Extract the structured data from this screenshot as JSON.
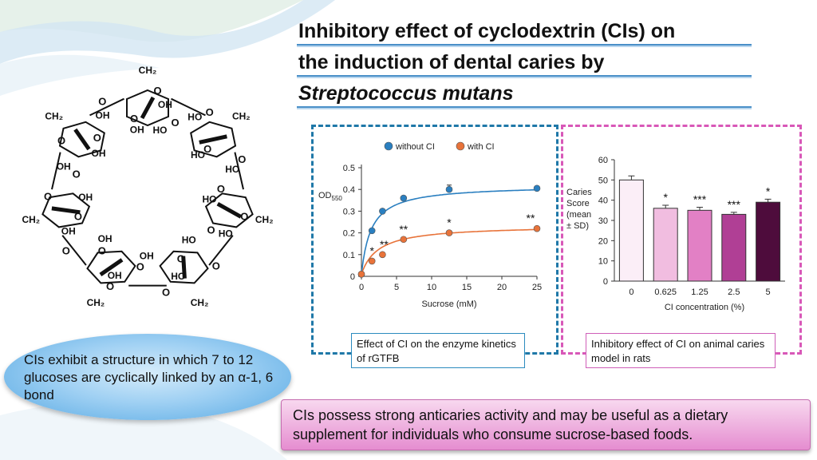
{
  "title": {
    "line1": "Inhibitory effect of cyclodextrin (CIs) on",
    "line2": "the induction of dental caries by",
    "line3": "Streptococcus mutans"
  },
  "colors": {
    "without_ci": "#2a7fc0",
    "with_ci": "#e8733a",
    "left_border": "#1f78a8",
    "right_border": "#d858b8"
  },
  "molecule": {
    "labels": [
      "CH₂",
      "CH₂",
      "CH₂",
      "CH₂",
      "CH₂",
      "CH₂",
      "CH₂",
      "O",
      "O",
      "O",
      "O",
      "O",
      "O",
      "O",
      "O",
      "O",
      "O",
      "O",
      "O",
      "O",
      "O",
      "O",
      "O",
      "O",
      "O",
      "O",
      "O",
      "O",
      "O",
      "HO",
      "HO",
      "HO",
      "HO",
      "HO",
      "HO",
      "HO",
      "HO",
      "OH",
      "OH",
      "OH",
      "OH",
      "OH",
      "OH",
      "OH",
      "OH",
      "OH",
      "OH"
    ]
  },
  "structure_note": "CIs exhibit a structure in which 7 to 12 glucoses are cyclically linked by an α-1, 6 bond",
  "chart_data": [
    {
      "type": "line",
      "xlabel": "Sucrose (mM)",
      "ylabel_main": "OD",
      "ylabel_sub": "550",
      "xlim": [
        0,
        25
      ],
      "ylim": [
        0,
        0.5
      ],
      "xticks": [
        0,
        5,
        10,
        15,
        20,
        25
      ],
      "yticks": [
        0,
        0.1,
        0.2,
        0.3,
        0.4,
        0.5
      ],
      "legend": [
        "without CI",
        "with CI"
      ],
      "series": [
        {
          "name": "without CI",
          "x": [
            0,
            1.5,
            3,
            6,
            12.5,
            25
          ],
          "y": [
            0.01,
            0.21,
            0.3,
            0.36,
            0.4,
            0.405
          ],
          "err": [
            0,
            0,
            0,
            0,
            0.02,
            0
          ]
        },
        {
          "name": "with CI",
          "x": [
            0,
            1.5,
            3,
            6,
            12.5,
            25
          ],
          "y": [
            0.01,
            0.07,
            0.1,
            0.17,
            0.2,
            0.22
          ],
          "err": [
            0,
            0,
            0,
            0,
            0,
            0
          ]
        }
      ],
      "significance": [
        {
          "x": 1.5,
          "label": "*"
        },
        {
          "x": 3,
          "label": "**"
        },
        {
          "x": 6,
          "label": "**"
        },
        {
          "x": 12.5,
          "label": "*"
        },
        {
          "x": 25,
          "label": "**"
        }
      ]
    },
    {
      "type": "bar",
      "categories": [
        "0",
        "0.625",
        "1.25",
        "2.5",
        "5"
      ],
      "values": [
        50,
        36,
        35,
        33,
        39
      ],
      "errors": [
        2,
        1.5,
        1.5,
        1,
        1.5
      ],
      "significance": [
        "",
        "*",
        "***",
        "***",
        "*"
      ],
      "bar_colors": [
        "#fbeef7",
        "#f1bde0",
        "#e280c5",
        "#b03f95",
        "#4e0c3c"
      ],
      "xlabel": "CI concentration (%)",
      "ylabel_lines": [
        "Caries",
        "Score",
        "(mean",
        "± SD)"
      ],
      "ylim": [
        0,
        60
      ],
      "yticks": [
        0,
        10,
        20,
        30,
        40,
        50,
        60
      ]
    }
  ],
  "captions": {
    "left": "Effect of CI on the enzyme kinetics of rGTFB",
    "right": "Inhibitory effect of CI on animal caries model in rats"
  },
  "conclusion": "CIs possess strong anticaries activity and may be useful as a dietary supplement for individuals who consume sucrose-based foods."
}
